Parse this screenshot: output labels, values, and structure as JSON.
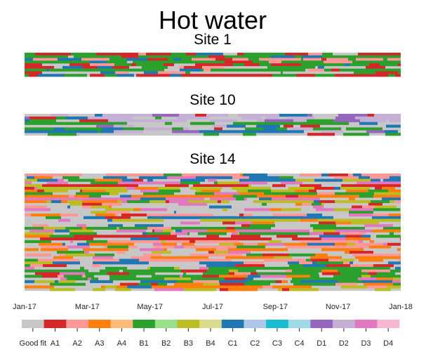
{
  "chart_data": {
    "type": "heatmap",
    "title": "Hot water",
    "panels": [
      {
        "name": "Site 1",
        "dominant": "B1",
        "mix": [
          "Good fit",
          "B1",
          "C1",
          "A1",
          "A2"
        ]
      },
      {
        "name": "Site 10",
        "dominant": "Good fit",
        "mix": [
          "Good fit",
          "C1",
          "A1",
          "B1",
          "D1",
          "D2"
        ]
      },
      {
        "name": "Site 14",
        "dominant": "Good fit",
        "mix": [
          "Good fit",
          "A1",
          "B1",
          "C1",
          "A2",
          "A3",
          "B3",
          "D3"
        ]
      }
    ],
    "x_ticks": [
      "Jan-17",
      "Mar-17",
      "May-17",
      "Jul-17",
      "Sep-17",
      "Nov-17",
      "Jan-18"
    ],
    "legend": {
      "labels": [
        "Good fit",
        "A1",
        "A2",
        "A3",
        "A4",
        "B1",
        "B2",
        "B3",
        "B4",
        "C1",
        "C2",
        "C3",
        "C4",
        "D1",
        "D2",
        "D3",
        "D4"
      ],
      "colors": [
        "#c7c7c7",
        "#d62728",
        "#ff9896",
        "#ff7f0e",
        "#ffbb78",
        "#2ca02c",
        "#98df8a",
        "#bcbd22",
        "#dbdb8d",
        "#1f77b4",
        "#aec7e8",
        "#17becf",
        "#9edae5",
        "#9467bd",
        "#c5b0d5",
        "#e377c2",
        "#f7b6d2"
      ]
    }
  }
}
